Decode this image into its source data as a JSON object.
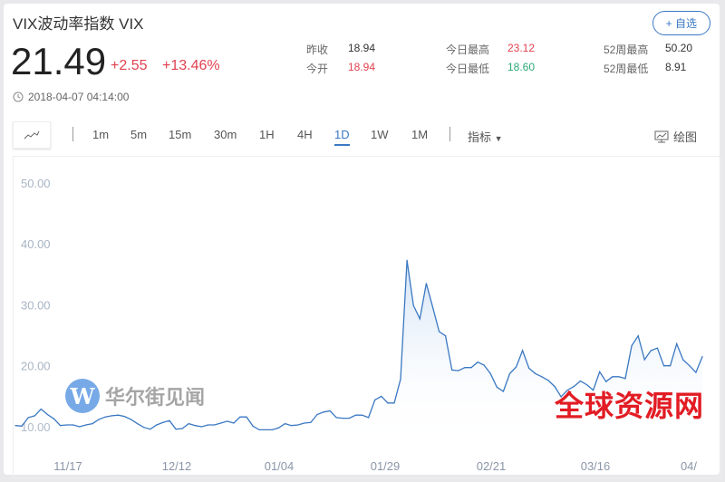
{
  "header": {
    "title": "VIX波动率指数 VIX",
    "watch_button": "+ 自选"
  },
  "quote": {
    "price": "21.49",
    "change": "+2.55",
    "change_pct": "+13.46%",
    "timestamp": "2018-04-07 04:14:00"
  },
  "stats": [
    {
      "label": "昨收",
      "value": "18.94",
      "color": "#333333"
    },
    {
      "label": "今开",
      "value": "18.94",
      "color": "#e0424f"
    },
    {
      "label": "今日最高",
      "value": "23.12",
      "color": "#e0424f"
    },
    {
      "label": "今日最低",
      "value": "18.60",
      "color": "#2aa876"
    },
    {
      "label": "52周最高",
      "value": "50.20",
      "color": "#333333"
    },
    {
      "label": "52周最低",
      "value": "8.91",
      "color": "#333333"
    }
  ],
  "toolbar": {
    "periods": [
      "1m",
      "5m",
      "15m",
      "30m",
      "1H",
      "4H",
      "1D",
      "1W",
      "1M"
    ],
    "active": "1D",
    "indicator": "指标",
    "draw": "绘图"
  },
  "watermarks": {
    "left": "华尔街见闻",
    "right": "全球资源网"
  },
  "colors": {
    "line": "#3a78c2",
    "up": "#e0424f",
    "down": "#2aa876",
    "accent": "#3a78c2"
  },
  "chart_data": {
    "type": "area",
    "ylim": [
      5,
      55
    ],
    "y_ticks": [
      "50.00",
      "40.00",
      "30.00",
      "20.00",
      "10.00"
    ],
    "y_tick_values": [
      50,
      40,
      30,
      20,
      10
    ],
    "x_ticks": [
      "11/17",
      "12/12",
      "01/04",
      "01/29",
      "02/21",
      "03/16",
      "04/"
    ],
    "grid": false,
    "values": [
      10.2,
      10.1,
      11.5,
      11.8,
      12.9,
      12.0,
      11.3,
      10.2,
      10.3,
      10.3,
      10.0,
      10.3,
      10.5,
      11.2,
      11.6,
      11.8,
      11.9,
      11.7,
      11.2,
      10.5,
      9.9,
      9.6,
      10.3,
      10.7,
      11.0,
      9.6,
      9.7,
      10.5,
      10.2,
      10.0,
      10.3,
      10.3,
      10.6,
      10.9,
      10.6,
      11.6,
      11.6,
      10.1,
      9.5,
      9.5,
      9.5,
      9.8,
      10.5,
      10.2,
      10.3,
      10.6,
      10.7,
      12.0,
      12.4,
      12.6,
      11.5,
      11.4,
      11.4,
      11.9,
      11.9,
      11.5,
      14.4,
      15.0,
      13.9,
      13.9,
      17.8,
      37.3,
      29.9,
      27.7,
      33.5,
      29.6,
      25.6,
      24.9,
      19.3,
      19.2,
      19.7,
      19.7,
      20.6,
      20.1,
      18.7,
      16.5,
      15.8,
      18.7,
      19.8,
      22.5,
      19.6,
      18.7,
      18.2,
      17.6,
      16.6,
      14.9,
      16.0,
      16.6,
      17.5,
      16.9,
      16.0,
      19.0,
      17.4,
      18.2,
      18.2,
      17.9,
      23.3,
      24.9,
      21.0,
      22.5,
      22.9,
      20.0,
      20.0,
      23.6,
      21.0,
      20.0,
      18.9,
      21.5
    ]
  }
}
